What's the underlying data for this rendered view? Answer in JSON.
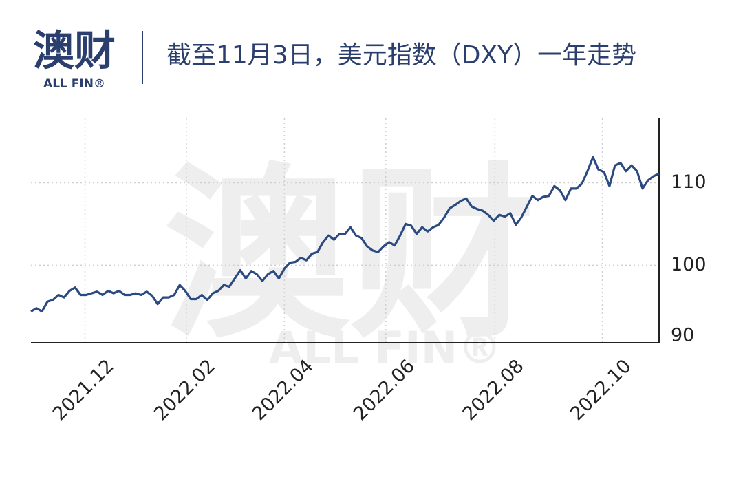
{
  "logo": {
    "name": "澳财",
    "sub": "ALL FIN®"
  },
  "chart_data": {
    "type": "line",
    "title": "截至11月3日，美元指数（DXY）一年走势",
    "series": [
      {
        "name": "DXY",
        "color": "#2b4a80",
        "values": [
          94.4,
          94.8,
          94.4,
          95.6,
          95.8,
          96.4,
          96.1,
          96.9,
          97.3,
          96.4,
          96.4,
          96.6,
          96.8,
          96.4,
          96.9,
          96.6,
          96.9,
          96.4,
          96.4,
          96.6,
          96.4,
          96.8,
          96.3,
          95.3,
          96.1,
          96.1,
          96.4,
          97.6,
          96.9,
          95.9,
          95.9,
          96.4,
          95.8,
          96.6,
          96.9,
          97.6,
          97.4,
          98.4,
          99.4,
          98.4,
          99.3,
          98.9,
          98.1,
          98.9,
          99.3,
          98.4,
          99.6,
          100.3,
          100.4,
          100.9,
          100.6,
          101.4,
          101.6,
          102.8,
          103.6,
          103.1,
          103.8,
          103.8,
          104.6,
          103.6,
          103.3,
          102.3,
          101.8,
          101.6,
          102.3,
          102.8,
          102.4,
          103.6,
          105.0,
          104.8,
          103.8,
          104.6,
          104.1,
          104.6,
          104.9,
          105.8,
          106.9,
          107.3,
          107.8,
          108.1,
          107.1,
          106.8,
          106.6,
          106.1,
          105.4,
          106.1,
          105.9,
          106.3,
          104.9,
          105.8,
          107.1,
          108.4,
          107.9,
          108.3,
          108.4,
          109.6,
          109.1,
          107.9,
          109.3,
          109.3,
          109.9,
          111.4,
          113.1,
          111.6,
          111.3,
          109.6,
          112.1,
          112.4,
          111.4,
          112.1,
          111.4,
          109.3,
          110.3,
          110.8,
          111.1
        ]
      }
    ],
    "xlim": [
      0,
      114
    ],
    "xticks": [
      {
        "value": 9.8,
        "label": "2021.12"
      },
      {
        "value": 28.2,
        "label": "2022.02"
      },
      {
        "value": 46,
        "label": "2022.04"
      },
      {
        "value": 64.4,
        "label": "2022.06"
      },
      {
        "value": 84.2,
        "label": "2022.08"
      },
      {
        "value": 103.7,
        "label": "2022.10"
      }
    ],
    "ylim": [
      90.6,
      117.8
    ],
    "yticks": [
      90,
      100,
      110
    ],
    "grid": true
  }
}
